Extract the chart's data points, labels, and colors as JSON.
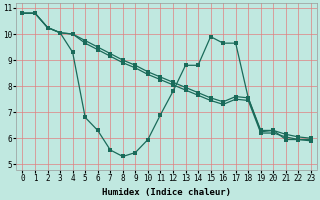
{
  "background_color": "#c0e8e0",
  "grid_color": "#e08080",
  "line_color": "#1a6b5a",
  "xlabel": "Humidex (Indice chaleur)",
  "xlim": [
    -0.5,
    23.5
  ],
  "ylim": [
    4.8,
    11.2
  ],
  "yticks": [
    5,
    6,
    7,
    8,
    9,
    10,
    11
  ],
  "xticks": [
    0,
    1,
    2,
    3,
    4,
    5,
    6,
    7,
    8,
    9,
    10,
    11,
    12,
    13,
    14,
    15,
    16,
    17,
    18,
    19,
    20,
    21,
    22,
    23
  ],
  "line1_x": [
    0,
    1,
    2,
    3,
    4,
    5,
    6,
    7,
    8,
    9,
    10,
    11,
    12,
    13,
    14,
    15,
    16,
    17,
    18,
    19,
    20,
    21,
    22,
    23
  ],
  "line1_y": [
    10.8,
    10.8,
    10.25,
    10.05,
    9.3,
    6.8,
    6.3,
    5.55,
    5.3,
    5.45,
    5.95,
    6.9,
    7.8,
    8.8,
    8.8,
    9.9,
    9.65,
    9.65,
    7.55,
    6.25,
    6.3,
    5.95,
    5.95,
    5.95
  ],
  "line2_x": [
    0,
    1,
    2,
    3,
    4,
    5,
    6,
    7,
    8,
    9,
    10,
    11,
    12,
    13,
    14,
    15,
    16,
    17,
    18,
    19,
    20,
    21,
    22,
    23
  ],
  "line2_y": [
    10.8,
    10.8,
    10.25,
    10.05,
    10.0,
    9.75,
    9.5,
    9.25,
    9.0,
    8.8,
    8.55,
    8.35,
    8.15,
    7.95,
    7.75,
    7.55,
    7.4,
    7.6,
    7.55,
    6.3,
    6.3,
    6.15,
    6.05,
    6.0
  ],
  "line3_x": [
    0,
    1,
    2,
    3,
    4,
    5,
    6,
    7,
    8,
    9,
    10,
    11,
    12,
    13,
    14,
    15,
    16,
    17,
    18,
    19,
    20,
    21,
    22,
    23
  ],
  "line3_y": [
    10.8,
    10.8,
    10.25,
    10.05,
    10.0,
    9.65,
    9.4,
    9.15,
    8.9,
    8.7,
    8.45,
    8.25,
    8.05,
    7.85,
    7.65,
    7.45,
    7.3,
    7.5,
    7.45,
    6.2,
    6.2,
    6.05,
    5.95,
    5.9
  ]
}
